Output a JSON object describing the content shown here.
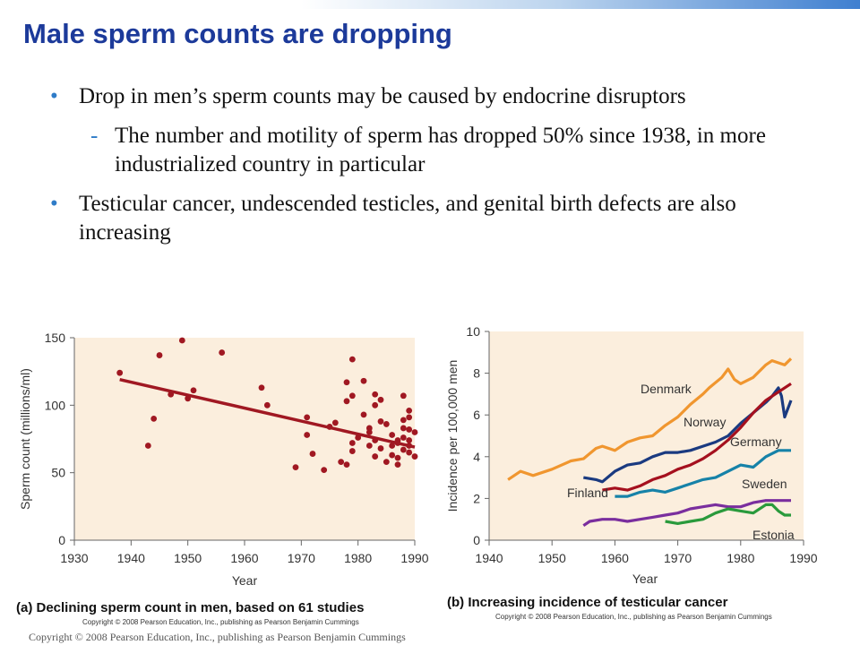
{
  "slide": {
    "title": "Male sperm counts are dropping",
    "bullets": [
      "Drop in men’s sperm counts may be caused by endocrine disruptors",
      "Testicular cancer, undescended testicles, and genital birth defects are also increasing"
    ],
    "sub_bullet": "The number and motility of sperm has dropped 50% since 1938, in more industrialized country in particular",
    "bullet_symbol": "•",
    "dash_symbol": "-",
    "copyright_small": "Copyright © 2008 Pearson Education, Inc., publishing as Pearson Benjamin Cummings",
    "footer": "Copyright © 2008 Pearson Education, Inc., publishing as Pearson Benjamin Cummings"
  },
  "colors": {
    "title": "#1c3a9a",
    "bullet": "#2f7cc8",
    "panel_a_bg": "#fbeedd",
    "panel_b_bg": "#fbeedd",
    "points": "#a01822",
    "trend": "#a01822",
    "Denmark": "#f0962f",
    "Norway": "#1a3a80",
    "Germany": "#a5101e",
    "Sweden": "#1682a8",
    "Finland": "#a5101e",
    "Finland_b": "#7a2e9e",
    "Estonia": "#2a9a3c"
  },
  "chart_data": [
    {
      "type": "scatter",
      "caption": "(a) Declining sperm count in men, based on 61 studies",
      "xlabel": "Year",
      "ylabel": "Sperm count (millions/ml)",
      "xlim": [
        1930,
        1990
      ],
      "ylim": [
        0,
        150
      ],
      "xticks": [
        "1930",
        "1940",
        "1950",
        "1960",
        "1970",
        "1980",
        "1990"
      ],
      "yticks": [
        "0",
        "50",
        "100",
        "150"
      ],
      "points": [
        [
          1938,
          124
        ],
        [
          1943,
          70
        ],
        [
          1944,
          90
        ],
        [
          1945,
          137
        ],
        [
          1947,
          108
        ],
        [
          1949,
          148
        ],
        [
          1950,
          105
        ],
        [
          1951,
          111
        ],
        [
          1956,
          139
        ],
        [
          1963,
          113
        ],
        [
          1964,
          100
        ],
        [
          1969,
          54
        ],
        [
          1971,
          91
        ],
        [
          1971,
          78
        ],
        [
          1972,
          64
        ],
        [
          1974,
          52
        ],
        [
          1975,
          84
        ],
        [
          1976,
          87
        ],
        [
          1977,
          58
        ],
        [
          1978,
          56
        ],
        [
          1978,
          103
        ],
        [
          1978,
          117
        ],
        [
          1979,
          134
        ],
        [
          1979,
          72
        ],
        [
          1979,
          66
        ],
        [
          1979,
          107
        ],
        [
          1980,
          76
        ],
        [
          1981,
          93
        ],
        [
          1981,
          118
        ],
        [
          1982,
          80
        ],
        [
          1982,
          70
        ],
        [
          1982,
          83
        ],
        [
          1983,
          108
        ],
        [
          1983,
          100
        ],
        [
          1983,
          74
        ],
        [
          1983,
          62
        ],
        [
          1984,
          104
        ],
        [
          1984,
          88
        ],
        [
          1984,
          68
        ],
        [
          1985,
          86
        ],
        [
          1985,
          58
        ],
        [
          1986,
          70
        ],
        [
          1986,
          63
        ],
        [
          1986,
          78
        ],
        [
          1987,
          72
        ],
        [
          1987,
          61
        ],
        [
          1987,
          56
        ],
        [
          1987,
          74
        ],
        [
          1988,
          67
        ],
        [
          1988,
          76
        ],
        [
          1988,
          83
        ],
        [
          1988,
          89
        ],
        [
          1988,
          107
        ],
        [
          1989,
          74
        ],
        [
          1989,
          70
        ],
        [
          1989,
          82
        ],
        [
          1989,
          96
        ],
        [
          1989,
          91
        ],
        [
          1989,
          65
        ],
        [
          1990,
          62
        ],
        [
          1990,
          80
        ]
      ],
      "trend_line": [
        [
          1938,
          119
        ],
        [
          1990,
          69
        ]
      ]
    },
    {
      "type": "line",
      "caption": "(b) Increasing incidence of testicular cancer",
      "xlabel": "Year",
      "ylabel": "Incidence per 100,000 men",
      "xlim": [
        1940,
        1990
      ],
      "ylim": [
        0,
        10
      ],
      "xticks": [
        "1940",
        "1950",
        "1960",
        "1970",
        "1980",
        "1990"
      ],
      "yticks": [
        "0",
        "2",
        "4",
        "6",
        "8",
        "10"
      ],
      "series": [
        {
          "name": "Denmark",
          "color": "#f0962f",
          "x": [
            1943,
            1945,
            1947,
            1950,
            1953,
            1955,
            1957,
            1958,
            1960,
            1962,
            1964,
            1966,
            1968,
            1970,
            1972,
            1974,
            1975,
            1977,
            1978,
            1979,
            1980,
            1982,
            1984,
            1985,
            1986,
            1987,
            1988
          ],
          "y": [
            2.9,
            3.3,
            3.1,
            3.4,
            3.8,
            3.9,
            4.4,
            4.5,
            4.3,
            4.7,
            4.9,
            5.0,
            5.5,
            5.9,
            6.5,
            7.0,
            7.3,
            7.8,
            8.2,
            7.7,
            7.5,
            7.8,
            8.4,
            8.6,
            8.5,
            8.4,
            8.7
          ]
        },
        {
          "name": "Norway",
          "color": "#1a3a80",
          "x": [
            1955,
            1957,
            1958,
            1960,
            1962,
            1964,
            1966,
            1968,
            1970,
            1972,
            1974,
            1976,
            1978,
            1980,
            1982,
            1984,
            1985,
            1986,
            1986.5,
            1987,
            1988
          ],
          "y": [
            3.0,
            2.9,
            2.8,
            3.3,
            3.6,
            3.7,
            4.0,
            4.2,
            4.2,
            4.3,
            4.5,
            4.7,
            5.0,
            5.6,
            6.1,
            6.6,
            6.9,
            7.3,
            6.9,
            5.9,
            6.7
          ]
        },
        {
          "name": "Germany",
          "color": "#a5101e",
          "x": [
            1958,
            1960,
            1962,
            1964,
            1966,
            1968,
            1970,
            1972,
            1974,
            1976,
            1978,
            1980,
            1982,
            1984,
            1986,
            1988
          ],
          "y": [
            2.4,
            2.5,
            2.4,
            2.6,
            2.9,
            3.1,
            3.4,
            3.6,
            3.9,
            4.3,
            4.8,
            5.4,
            6.1,
            6.7,
            7.1,
            7.5
          ]
        },
        {
          "name": "Sweden",
          "color": "#1682a8",
          "x": [
            1960,
            1962,
            1964,
            1966,
            1968,
            1970,
            1972,
            1974,
            1976,
            1978,
            1980,
            1982,
            1984,
            1986,
            1988
          ],
          "y": [
            2.1,
            2.1,
            2.3,
            2.4,
            2.3,
            2.5,
            2.7,
            2.9,
            3.0,
            3.3,
            3.6,
            3.5,
            4.0,
            4.3,
            4.3
          ]
        },
        {
          "name": "Finland",
          "color": "#7a2e9e",
          "x": [
            1955,
            1956,
            1958,
            1960,
            1962,
            1964,
            1966,
            1968,
            1970,
            1972,
            1974,
            1976,
            1978,
            1980,
            1982,
            1984,
            1986,
            1988
          ],
          "y": [
            0.7,
            0.9,
            1.0,
            1.0,
            0.9,
            1.0,
            1.1,
            1.2,
            1.3,
            1.5,
            1.6,
            1.7,
            1.6,
            1.6,
            1.8,
            1.9,
            1.9,
            1.9
          ]
        },
        {
          "name": "Estonia",
          "color": "#2a9a3c",
          "x": [
            1968,
            1970,
            1972,
            1974,
            1976,
            1978,
            1980,
            1982,
            1984,
            1985,
            1986,
            1987,
            1988
          ],
          "y": [
            0.9,
            0.8,
            0.9,
            1.0,
            1.3,
            1.5,
            1.4,
            1.3,
            1.7,
            1.7,
            1.4,
            1.2,
            1.2
          ]
        }
      ],
      "series_labels": [
        "Denmark",
        "Norway",
        "Germany",
        "Sweden",
        "Finland",
        "Estonia"
      ]
    }
  ]
}
